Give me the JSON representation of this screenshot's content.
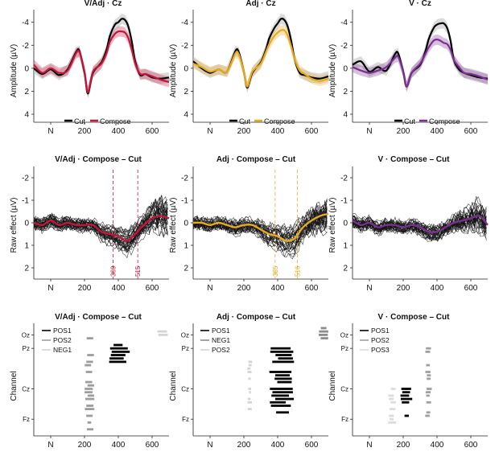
{
  "figure": {
    "rows": [
      {
        "panels": [
          {
            "title": "V/Adj · Cz",
            "ylabel": "Amplitude (µV)",
            "legend": [
              "Cut",
              "Compose"
            ]
          },
          {
            "title": "Adj · Cz",
            "ylabel": "Amplitude (µV)",
            "legend": [
              "Cut",
              "Compose"
            ]
          },
          {
            "title": "V · Cz",
            "ylabel": "Amplitude (µV)",
            "legend": [
              "Cut",
              "Compose"
            ]
          }
        ]
      },
      {
        "panels": [
          {
            "title": "V/Adj · Compose – Cut",
            "ylabel": "Raw effect (µV)",
            "markers": [
              "369",
              "515"
            ]
          },
          {
            "title": "Adj · Compose – Cut",
            "ylabel": "Raw effect (µV)",
            "markers": [
              "385",
              "516"
            ]
          },
          {
            "title": "V · Compose – Cut",
            "ylabel": "Raw effect (µV)",
            "markers": []
          }
        ]
      },
      {
        "panels": [
          {
            "title": "V/Adj · Compose – Cut",
            "ylabel": "Channel",
            "legend": [
              "POS1",
              "POS2",
              "NEG1"
            ]
          },
          {
            "title": "Adj · Compose – Cut",
            "ylabel": "Channel",
            "legend": [
              "POS1",
              "NEG1",
              "POS2"
            ]
          },
          {
            "title": "V · Compose – Cut",
            "ylabel": "Channel",
            "legend": [
              "POS1",
              "POS2",
              "POS3"
            ]
          }
        ]
      }
    ],
    "x_ticks": [
      "N",
      "200",
      "400",
      "600"
    ],
    "channel_ticks": [
      "Oz",
      "Pz",
      "Cz",
      "Fz"
    ]
  },
  "chart_data": [
    {
      "type": "line",
      "panel": "V/Adj · Cz",
      "ylabel": "Amplitude (µV)",
      "y_reversed": true,
      "ylim": [
        4.7,
        -5.1
      ],
      "yticks": [
        4,
        2,
        0,
        -2,
        -4
      ],
      "xlim": [
        -100,
        700
      ],
      "x": [
        -100,
        -50,
        0,
        50,
        100,
        150,
        170,
        200,
        220,
        250,
        300,
        330,
        350,
        380,
        400,
        420,
        440,
        460,
        480,
        500,
        530,
        560,
        600,
        650,
        700
      ],
      "series": [
        {
          "name": "Cut",
          "color": "#000000",
          "values": [
            0.0,
            0.5,
            0.1,
            0.6,
            0.1,
            -1.4,
            -1.5,
            0.4,
            2.2,
            0.4,
            -0.5,
            -1.6,
            -2.8,
            -3.8,
            -4.0,
            -4.3,
            -4.2,
            -3.6,
            -2.3,
            -0.6,
            0.6,
            0.5,
            0.8,
            0.9,
            0.8
          ]
        },
        {
          "name": "Compose",
          "color": "#c4153a",
          "values": [
            -0.3,
            0.4,
            0.0,
            0.4,
            0.2,
            -1.3,
            -1.4,
            0.3,
            2.1,
            0.3,
            -0.4,
            -1.3,
            -2.3,
            -3.0,
            -3.2,
            -3.2,
            -3.1,
            -2.6,
            -1.6,
            -0.4,
            0.5,
            0.5,
            0.7,
            1.0,
            1.2
          ]
        }
      ]
    },
    {
      "type": "line",
      "panel": "Adj · Cz",
      "ylabel": "Amplitude (µV)",
      "y_reversed": true,
      "ylim": [
        4.7,
        -5.1
      ],
      "yticks": [
        4,
        2,
        0,
        -2,
        -4
      ],
      "xlim": [
        -100,
        700
      ],
      "x": [
        -100,
        -50,
        0,
        50,
        100,
        150,
        170,
        200,
        220,
        250,
        300,
        330,
        350,
        380,
        400,
        420,
        440,
        460,
        480,
        500,
        530,
        560,
        600,
        650,
        700
      ],
      "series": [
        {
          "name": "Cut",
          "color": "#000000",
          "values": [
            -0.6,
            0.0,
            0.4,
            0.1,
            0.3,
            -1.5,
            -1.4,
            0.3,
            1.7,
            0.4,
            -0.5,
            -1.6,
            -2.6,
            -3.5,
            -3.9,
            -4.3,
            -4.2,
            -3.6,
            -2.4,
            -0.8,
            0.4,
            0.6,
            0.8,
            0.9,
            0.7
          ]
        },
        {
          "name": "Compose",
          "color": "#e8a91a",
          "values": [
            -0.4,
            -0.1,
            0.3,
            0.1,
            0.3,
            -1.3,
            -1.2,
            0.3,
            1.6,
            0.3,
            -0.4,
            -1.4,
            -2.1,
            -2.8,
            -3.1,
            -3.3,
            -3.3,
            -2.8,
            -1.9,
            -0.8,
            0.2,
            0.5,
            0.9,
            1.1,
            0.9
          ]
        }
      ]
    },
    {
      "type": "line",
      "panel": "V · Cz",
      "ylabel": "Amplitude (µV)",
      "y_reversed": true,
      "ylim": [
        4.7,
        -5.1
      ],
      "yticks": [
        4,
        2,
        0,
        -2,
        -4
      ],
      "xlim": [
        -100,
        700
      ],
      "x": [
        -100,
        -50,
        0,
        50,
        100,
        150,
        170,
        200,
        220,
        250,
        300,
        330,
        350,
        380,
        400,
        420,
        440,
        460,
        480,
        500,
        530,
        560,
        600,
        650,
        700
      ],
      "series": [
        {
          "name": "Cut",
          "color": "#000000",
          "values": [
            -0.3,
            -0.6,
            0.3,
            -0.1,
            0.2,
            -1.2,
            -1.3,
            0.3,
            1.6,
            0.4,
            -0.3,
            -1.4,
            -2.5,
            -3.5,
            -3.8,
            -3.9,
            -3.9,
            -3.5,
            -2.4,
            -0.7,
            0.1,
            0.4,
            0.6,
            0.8,
            0.9
          ]
        },
        {
          "name": "Compose",
          "color": "#7a2f91",
          "values": [
            -0.1,
            0.2,
            0.4,
            0.2,
            -0.1,
            -0.9,
            -1.0,
            0.3,
            1.6,
            0.4,
            -0.4,
            -1.2,
            -1.8,
            -2.4,
            -2.5,
            -2.4,
            -2.2,
            -2.1,
            -1.6,
            -0.7,
            -0.1,
            0.4,
            0.5,
            0.7,
            1.0
          ]
        }
      ]
    },
    {
      "type": "line",
      "panel": "V/Adj · Compose – Cut",
      "ylabel": "Raw effect (µV)",
      "y_reversed": true,
      "ylim": [
        2.5,
        -2.5
      ],
      "yticks": [
        2,
        1,
        0,
        -1,
        -2
      ],
      "xlim": [
        -100,
        700
      ],
      "markers_x": [
        369,
        515
      ],
      "x": [
        -100,
        -50,
        0,
        50,
        100,
        150,
        200,
        250,
        300,
        350,
        400,
        450,
        500,
        550,
        600,
        650,
        700
      ],
      "series": [
        {
          "name": "",
          "color": "#c4153a",
          "values": [
            0.0,
            0.1,
            -0.1,
            0.1,
            0.0,
            0.1,
            0.1,
            0.1,
            0.4,
            0.5,
            0.6,
            0.8,
            0.5,
            0.1,
            -0.2,
            -0.3,
            -0.2
          ]
        }
      ]
    },
    {
      "type": "line",
      "panel": "Adj · Compose – Cut",
      "ylabel": "Raw effect (µV)",
      "y_reversed": true,
      "ylim": [
        2.5,
        -2.5
      ],
      "yticks": [
        2,
        1,
        0,
        -1,
        -2
      ],
      "xlim": [
        -100,
        700
      ],
      "markers_x": [
        385,
        516
      ],
      "x": [
        -100,
        -50,
        0,
        50,
        100,
        150,
        200,
        250,
        300,
        350,
        400,
        450,
        500,
        550,
        600,
        650,
        700
      ],
      "series": [
        {
          "name": "",
          "color": "#e8a91a",
          "values": [
            0.0,
            0.0,
            0.1,
            0.0,
            0.1,
            0.2,
            0.1,
            0.1,
            0.3,
            0.5,
            0.6,
            0.8,
            0.7,
            0.2,
            -0.1,
            -0.3,
            -0.4
          ]
        }
      ]
    },
    {
      "type": "line",
      "panel": "V · Compose – Cut",
      "ylabel": "Raw effect (µV)",
      "y_reversed": true,
      "ylim": [
        2.5,
        -2.5
      ],
      "yticks": [
        2,
        1,
        0,
        -1,
        -2
      ],
      "xlim": [
        -100,
        700
      ],
      "markers_x": [],
      "x": [
        -100,
        -50,
        0,
        50,
        100,
        150,
        200,
        250,
        300,
        350,
        400,
        450,
        500,
        550,
        600,
        650,
        700
      ],
      "series": [
        {
          "name": "",
          "color": "#7a2f91",
          "values": [
            -0.1,
            0.1,
            0.0,
            0.2,
            0.1,
            0.1,
            0.2,
            0.1,
            0.2,
            0.4,
            0.4,
            0.2,
            0.0,
            -0.1,
            -0.2,
            -0.3,
            0.1
          ]
        }
      ]
    },
    {
      "type": "scatter",
      "panel": "V/Adj · Compose – Cut",
      "ylabel": "Channel",
      "clusters": [
        {
          "name": "POS1",
          "color": "#000000",
          "t_range": [
            330,
            470
          ],
          "channels": [
            5,
            10
          ]
        },
        {
          "name": "POS2",
          "color": "#9c9c9c",
          "t_range": [
            200,
            260
          ],
          "channels": [
            3,
            30
          ]
        },
        {
          "name": "NEG1",
          "color": "#d4d4d4",
          "t_range": [
            620,
            700
          ],
          "channels": [
            0,
            2
          ]
        }
      ]
    },
    {
      "type": "scatter",
      "panel": "Adj · Compose – Cut",
      "ylabel": "Channel",
      "clusters": [
        {
          "name": "POS1",
          "color": "#000000",
          "t_range": [
            350,
            500
          ],
          "channels": [
            6,
            26
          ]
        },
        {
          "name": "NEG1",
          "color": "#8c8c8c",
          "t_range": [
            640,
            700
          ],
          "channels": [
            0,
            3
          ]
        },
        {
          "name": "POS2",
          "color": "#d4d4d4",
          "t_range": [
            220,
            250
          ],
          "channels": [
            10,
            24
          ]
        }
      ]
    },
    {
      "type": "scatter",
      "panel": "V · Compose – Cut",
      "ylabel": "Channel",
      "clusters": [
        {
          "name": "POS1",
          "color": "#000000",
          "t_range": [
            180,
            260
          ],
          "channels": [
            18,
            28
          ]
        },
        {
          "name": "POS2",
          "color": "#a0a0a0",
          "t_range": [
            330,
            370
          ],
          "channels": [
            6,
            26
          ]
        },
        {
          "name": "POS3",
          "color": "#dcdcdc",
          "t_range": [
            110,
            160
          ],
          "channels": [
            18,
            30
          ]
        }
      ]
    }
  ]
}
